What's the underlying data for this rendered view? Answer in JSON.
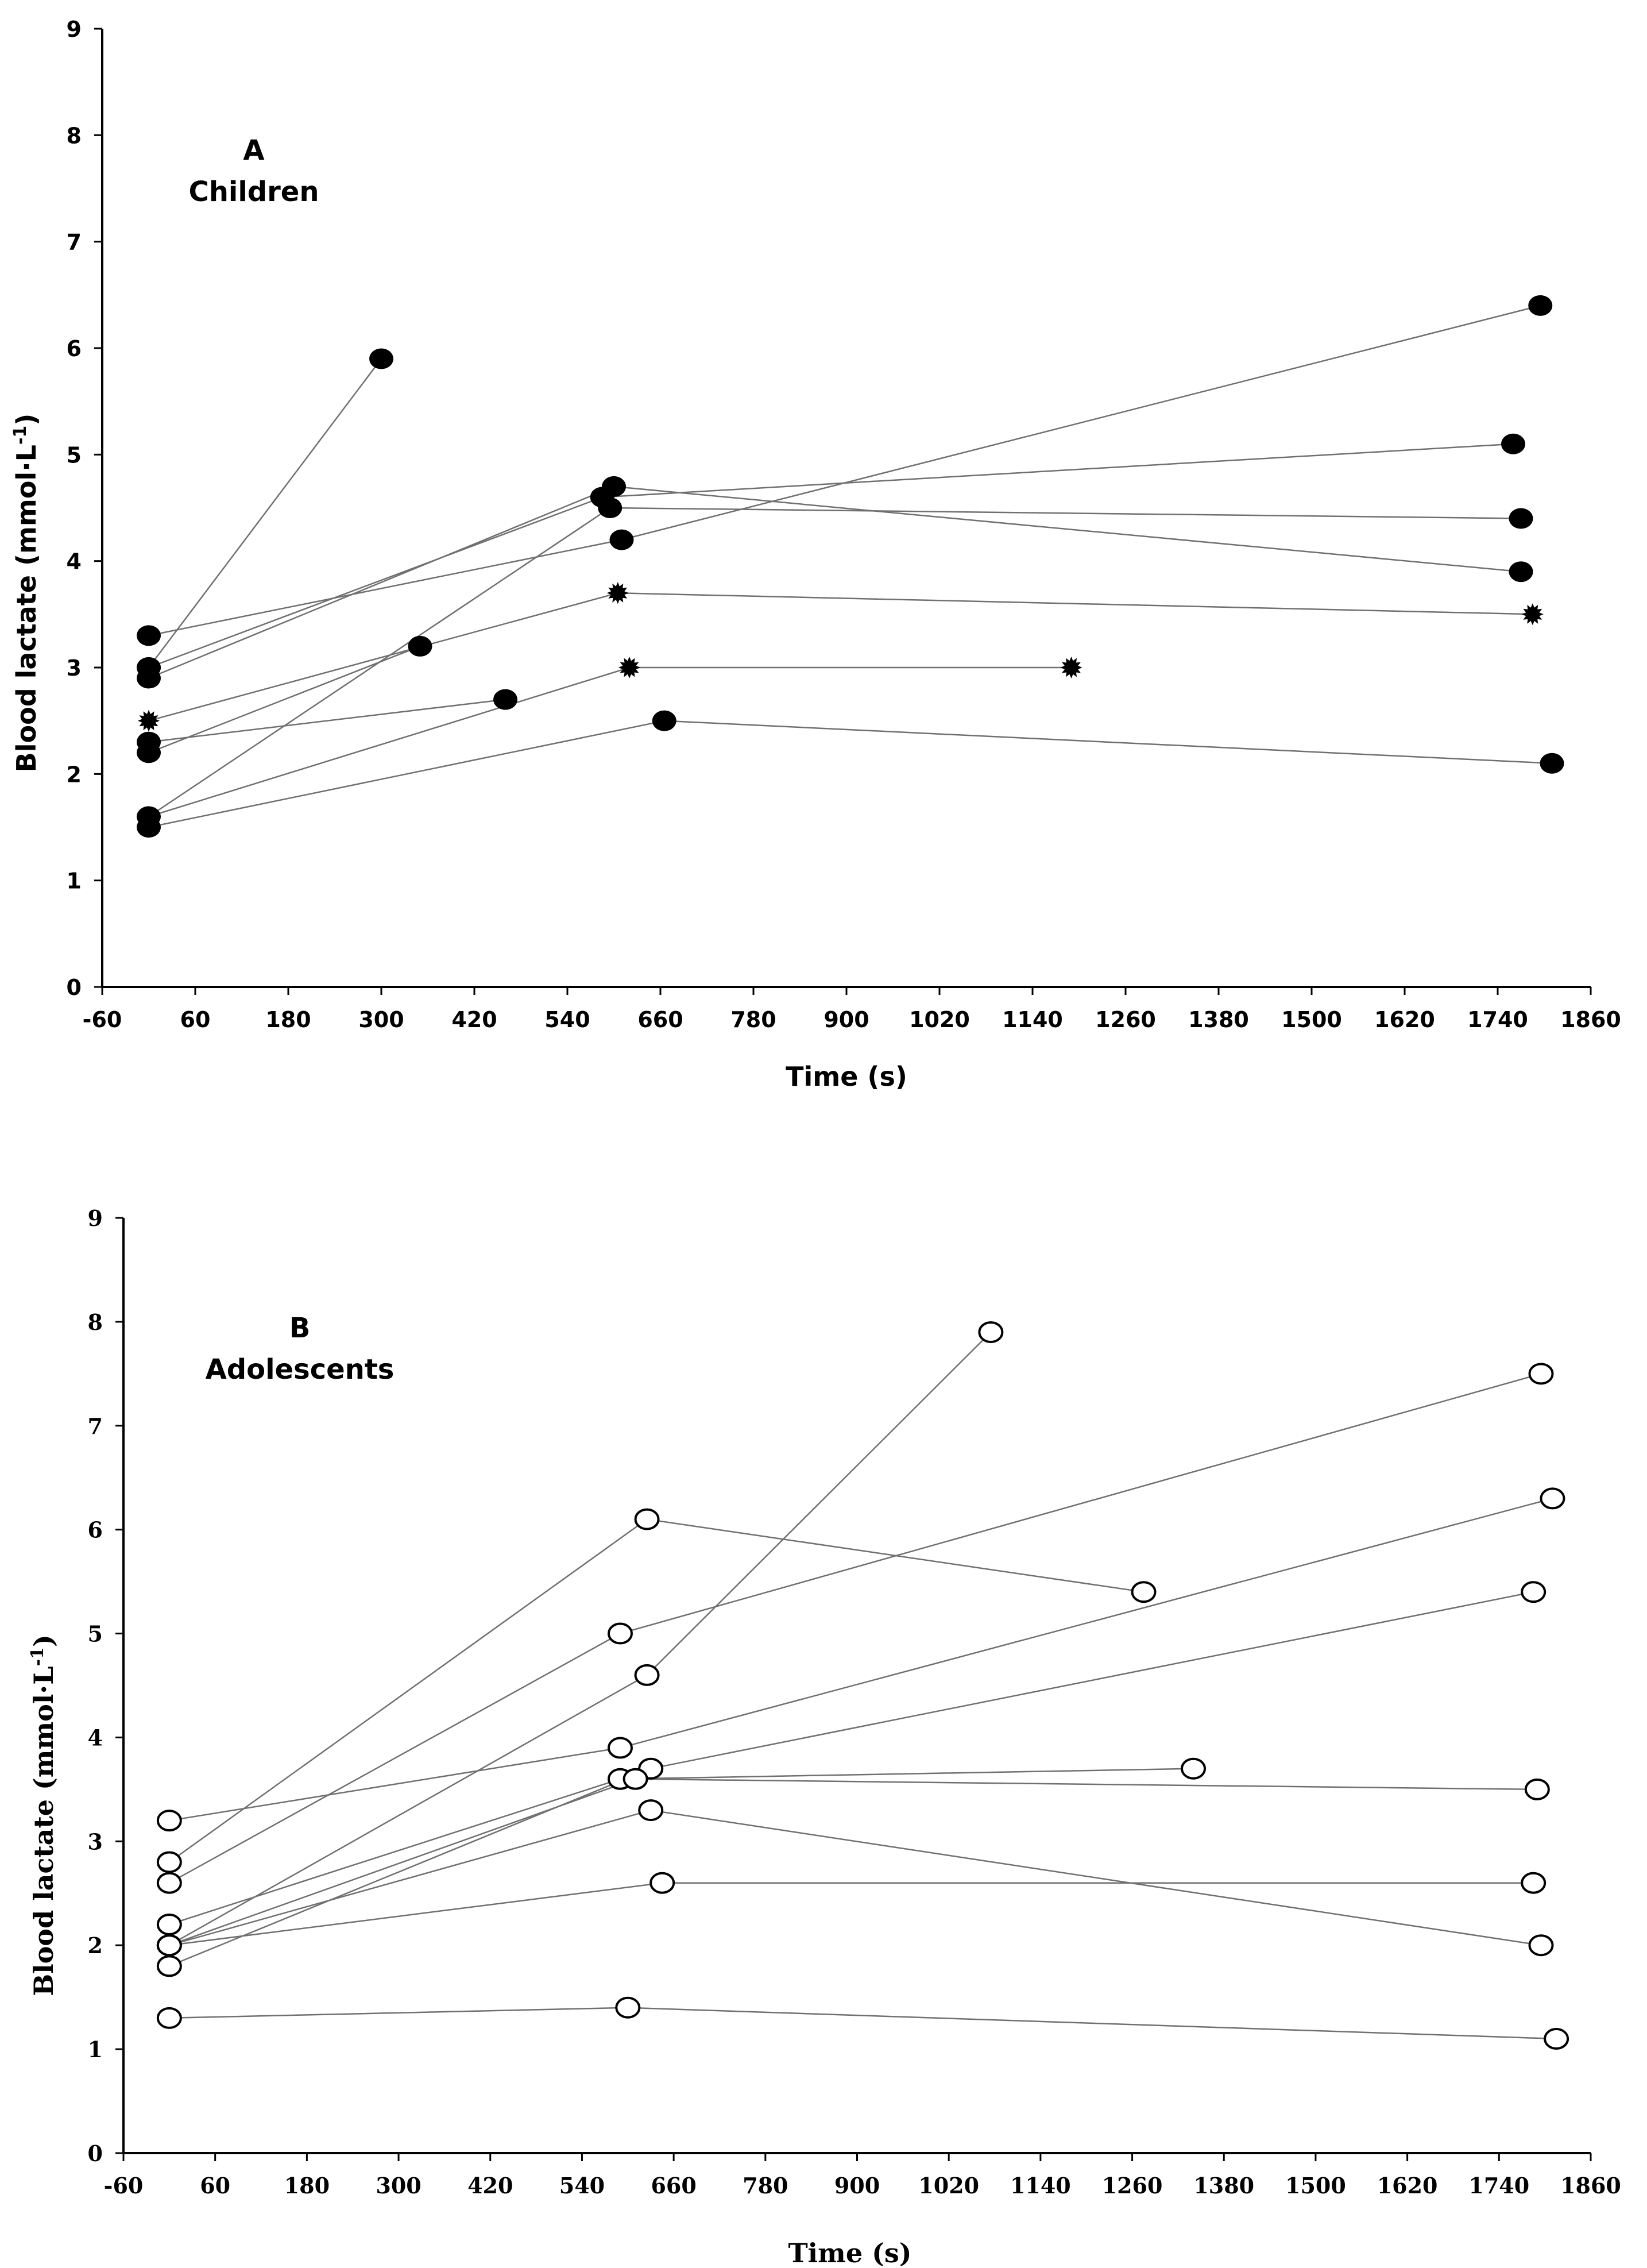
{
  "chart_data": [
    {
      "type": "line",
      "panel_letter": "A",
      "panel_group": "Children",
      "xlabel": "Time (s)",
      "ylabel": "Blood lactate (mmol·L",
      "ylabel_sup": "-1",
      "ylabel_close": ")",
      "xlim": [
        -60,
        1860
      ],
      "ylim": [
        0,
        9
      ],
      "x_ticks": [
        -60,
        60,
        180,
        300,
        420,
        540,
        660,
        780,
        900,
        1020,
        1140,
        1260,
        1380,
        1500,
        1620,
        1740,
        1860
      ],
      "y_ticks": [
        0,
        1,
        2,
        3,
        4,
        5,
        6,
        7,
        8,
        9
      ],
      "line_color": "#707070",
      "marker_color": "#000000",
      "series": [
        {
          "marker": "filled",
          "points": [
            [
              0,
              3.0
            ],
            [
              300,
              5.9
            ]
          ]
        },
        {
          "marker": "filled",
          "points": [
            [
              0,
              1.6
            ],
            [
              595,
              4.5
            ],
            [
              1770,
              4.4
            ]
          ]
        },
        {
          "marker": "filled",
          "points": [
            [
              0,
              2.9
            ],
            [
              600,
              4.7
            ],
            [
              1770,
              3.9
            ]
          ]
        },
        {
          "marker": "filled",
          "points": [
            [
              0,
              3.0
            ],
            [
              585,
              4.6
            ],
            [
              1760,
              5.1
            ]
          ]
        },
        {
          "marker": "filled",
          "points": [
            [
              0,
              3.3
            ],
            [
              610,
              4.2
            ],
            [
              1795,
              6.4
            ]
          ]
        },
        {
          "marker": "filled",
          "points": [
            [
              0,
              2.2
            ],
            [
              350,
              3.2
            ]
          ]
        },
        {
          "marker": "star",
          "points": [
            [
              0,
              2.5
            ],
            [
              605,
              3.7
            ],
            [
              1785,
              3.5
            ]
          ]
        },
        {
          "marker": "filled",
          "points": [
            [
              0,
              2.3
            ],
            [
              460,
              2.7
            ]
          ]
        },
        {
          "marker": "star",
          "points": [
            [
              0,
              1.6
            ],
            [
              620,
              3.0
            ],
            [
              1190,
              3.0
            ]
          ]
        },
        {
          "marker": "filled",
          "points": [
            [
              0,
              1.5
            ],
            [
              665,
              2.5
            ],
            [
              1810,
              2.1
            ]
          ]
        }
      ]
    },
    {
      "type": "line",
      "panel_letter": "B",
      "panel_group": "Adolescents",
      "xlabel": "Time (s)",
      "ylabel": "Blood lactate (mmol·L",
      "ylabel_sup": "-1",
      "ylabel_close": ")",
      "xlim": [
        -60,
        1860
      ],
      "ylim": [
        0,
        9
      ],
      "x_ticks": [
        -60,
        60,
        180,
        300,
        420,
        540,
        660,
        780,
        900,
        1020,
        1140,
        1260,
        1380,
        1500,
        1620,
        1740,
        1860
      ],
      "y_ticks": [
        0,
        1,
        2,
        3,
        4,
        5,
        6,
        7,
        8,
        9
      ],
      "line_color": "#707070",
      "marker_color": "#000000",
      "series": [
        {
          "marker": "open",
          "points": [
            [
              0,
              2.8
            ],
            [
              625,
              6.1
            ],
            [
              1275,
              5.4
            ]
          ]
        },
        {
          "marker": "open",
          "points": [
            [
              0,
              2.6
            ],
            [
              590,
              5.0
            ],
            [
              1795,
              7.5
            ]
          ]
        },
        {
          "marker": "open",
          "points": [
            [
              0,
              2.0
            ],
            [
              625,
              4.6
            ],
            [
              1075,
              7.9
            ]
          ]
        },
        {
          "marker": "open",
          "points": [
            [
              0,
              3.2
            ],
            [
              590,
              3.9
            ],
            [
              1810,
              6.3
            ]
          ]
        },
        {
          "marker": "open",
          "points": [
            [
              0,
              1.8
            ],
            [
              630,
              3.7
            ],
            [
              1785,
              5.4
            ]
          ]
        },
        {
          "marker": "open",
          "points": [
            [
              0,
              2.2
            ],
            [
              590,
              3.6
            ],
            [
              1340,
              3.7
            ]
          ]
        },
        {
          "marker": "open",
          "points": [
            [
              0,
              2.0
            ],
            [
              610,
              3.6
            ],
            [
              1790,
              3.5
            ]
          ]
        },
        {
          "marker": "open",
          "points": [
            [
              0,
              2.0
            ],
            [
              630,
              3.3
            ],
            [
              1795,
              2.0
            ]
          ]
        },
        {
          "marker": "open",
          "points": [
            [
              0,
              2.0
            ],
            [
              645,
              2.6
            ],
            [
              1785,
              2.6
            ]
          ]
        },
        {
          "marker": "open",
          "points": [
            [
              0,
              1.3
            ],
            [
              600,
              1.4
            ],
            [
              1815,
              1.1
            ]
          ]
        }
      ]
    }
  ]
}
